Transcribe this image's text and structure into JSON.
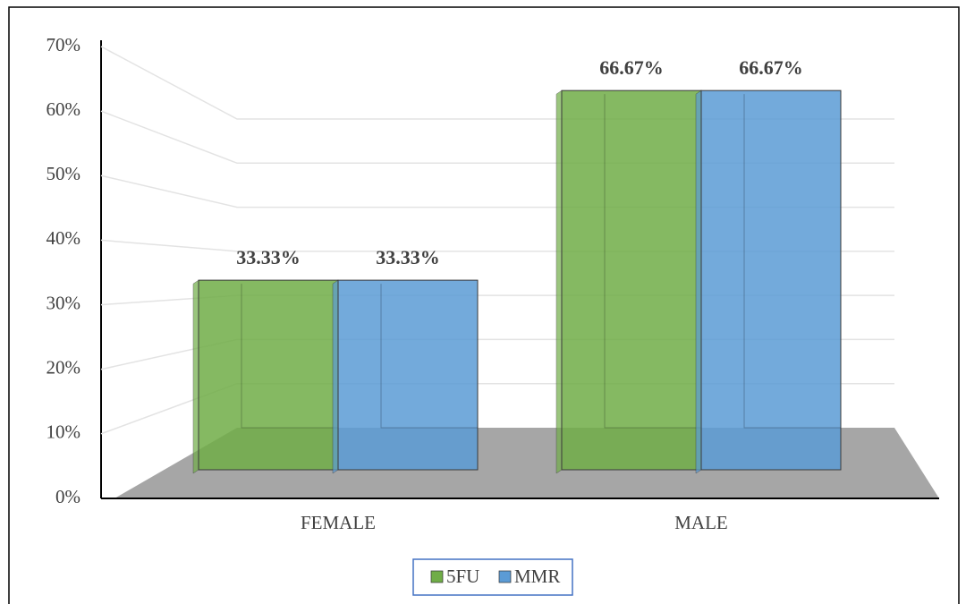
{
  "chart_data": {
    "type": "bar",
    "categories": [
      "FEMALE",
      "MALE"
    ],
    "series": [
      {
        "name": "5FU",
        "color": "#70ad47",
        "values": [
          33.33,
          66.67
        ],
        "value_labels": [
          "33.33%",
          "66.67%"
        ]
      },
      {
        "name": "MMR",
        "color": "#5b9bd5",
        "values": [
          33.33,
          66.67
        ],
        "value_labels": [
          "33.33%",
          "66.67%"
        ]
      }
    ],
    "ylim": [
      0,
      70
    ],
    "yticks": [
      {
        "value": 0,
        "label": "0%"
      },
      {
        "value": 10,
        "label": "10%"
      },
      {
        "value": 20,
        "label": "20%"
      },
      {
        "value": 30,
        "label": "30%"
      },
      {
        "value": 40,
        "label": "40%"
      },
      {
        "value": 50,
        "label": "50%"
      },
      {
        "value": 60,
        "label": "60%"
      },
      {
        "value": 70,
        "label": "70%"
      }
    ],
    "grid": true
  }
}
